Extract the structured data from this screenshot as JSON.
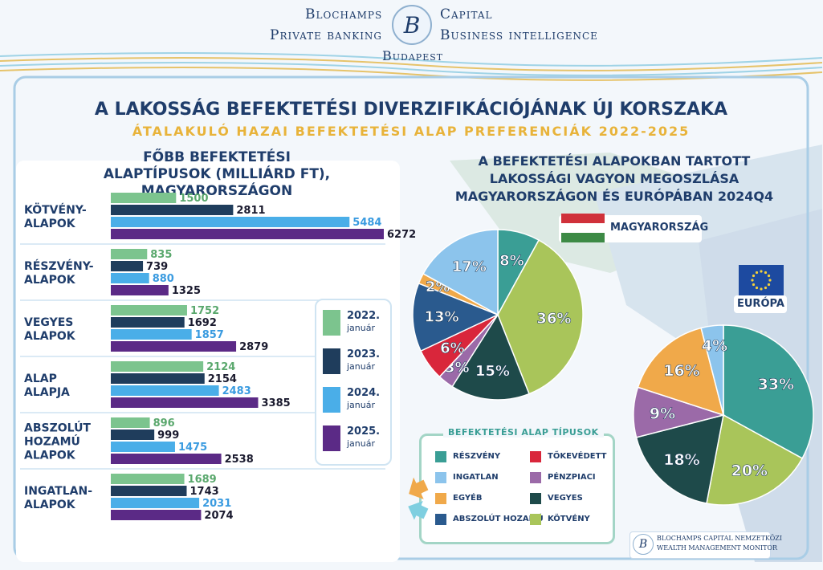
{
  "header": {
    "left_line1": "Blochamps",
    "right_line1": "Capital",
    "left_line2": "Private banking",
    "right_line2": "Business intelligence",
    "city": "Budapest",
    "logo_letter": "B"
  },
  "title": "A LAKOSSÁG BEFEKTETÉSI DIVERZIFIKÁCIÓJÁNAK ÚJ KORSZAKA",
  "subtitle": "ÁTALAKULÓ HAZAI BEFEKTETÉSI ALAP PREFERENCIÁK 2022-2025",
  "colors": {
    "y2022": "#7cc48e",
    "y2023": "#1f3d5c",
    "y2024": "#4aaee8",
    "y2025": "#5b2a86",
    "navy": "#1f3d6b",
    "gold": "#e8b33a"
  },
  "chart_data": [
    {
      "type": "bar",
      "title": "FŐBB BEFEKTETÉSI ALAPTÍPUSOK (MILLIÁRD FT), MAGYARORSZÁGON",
      "categories": [
        "KÖTVÉNY-\nALAPOK",
        "RÉSZVÉNY-\nALAPOK",
        "VEGYES\nALAPOK",
        "ALAP\nALAPJA",
        "ABSZOLÚT\nHOZAMÚ\nALAPOK",
        "INGATLAN-\nALAPOK"
      ],
      "series": [
        {
          "name": "2022. január",
          "values": [
            1500,
            835,
            1752,
            2124,
            896,
            1689
          ]
        },
        {
          "name": "2023. január",
          "values": [
            2811,
            739,
            1692,
            2154,
            999,
            1743
          ]
        },
        {
          "name": "2024. január",
          "values": [
            5484,
            880,
            1857,
            2483,
            1475,
            2031
          ]
        },
        {
          "name": "2025. január",
          "values": [
            6272,
            1325,
            2879,
            3385,
            2538,
            2074
          ]
        }
      ],
      "legend": [
        {
          "year": "2022.",
          "month": "január"
        },
        {
          "year": "2023.",
          "month": "január"
        },
        {
          "year": "2024.",
          "month": "január"
        },
        {
          "year": "2025.",
          "month": "január"
        }
      ]
    },
    {
      "type": "pie",
      "title": "A BEFEKTETÉSI ALAPOKBAN TARTOTT LAKOSSÁGI VAGYON MEGOSZLÁSA MAGYARORSZÁGON ÉS EURÓPÁBAN 2024Q4",
      "label": "MAGYARORSZÁG",
      "slices": [
        {
          "category": "RÉSZVÉNY",
          "value": 8,
          "label": "8%"
        },
        {
          "category": "KÖTVÉNY",
          "value": 36,
          "label": "36%"
        },
        {
          "category": "VEGYES",
          "value": 15,
          "label": "15%"
        },
        {
          "category": "PÉNZPIACI",
          "value": 3,
          "label": "3%"
        },
        {
          "category": "TŐKEVÉDETT",
          "value": 6,
          "label": "6%"
        },
        {
          "category": "ABSZOLÚT HOZAMÚ",
          "value": 13,
          "label": "13%"
        },
        {
          "category": "EGYÉB",
          "value": 2,
          "label": "2%"
        },
        {
          "category": "INGATLAN",
          "value": 17,
          "label": "17%"
        }
      ]
    },
    {
      "type": "pie",
      "label": "EURÓPA",
      "slices": [
        {
          "category": "RÉSZVÉNY",
          "value": 33,
          "label": "33%"
        },
        {
          "category": "KÖTVÉNY",
          "value": 20,
          "label": "20%"
        },
        {
          "category": "VEGYES",
          "value": 18,
          "label": "18%"
        },
        {
          "category": "PÉNZPIACI",
          "value": 9,
          "label": "9%"
        },
        {
          "category": "EGYÉB",
          "value": 16,
          "label": "16%"
        },
        {
          "category": "INGATLAN",
          "value": 4,
          "label": "4%"
        }
      ]
    }
  ],
  "type_legend": {
    "title": "BEFEKTETÉSI ALAP TÍPUSOK",
    "items": [
      {
        "name": "RÉSZVÉNY",
        "color": "#3a9e95"
      },
      {
        "name": "TŐKEVÉDETT",
        "color": "#d9263b"
      },
      {
        "name": "INGATLAN",
        "color": "#8cc4ec"
      },
      {
        "name": "PÉNZPIACI",
        "color": "#9b6aa8"
      },
      {
        "name": "EGYÉB",
        "color": "#f0a94a"
      },
      {
        "name": "VEGYES",
        "color": "#1e4a4a"
      },
      {
        "name": "ABSZOLÚT HOZAMÚ",
        "color": "#2a5a8e"
      },
      {
        "name": "KÖTVÉNY",
        "color": "#a9c55a"
      }
    ]
  },
  "footer": {
    "line1": "BLOCHAMPS CAPITAL NEMZETKÖZI",
    "line2": "WEALTH MANAGEMENT MONITOR",
    "logo_letter": "B"
  }
}
